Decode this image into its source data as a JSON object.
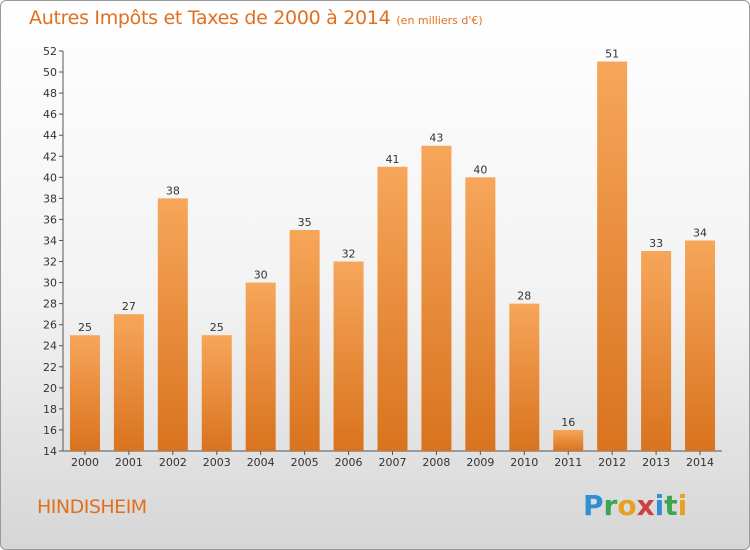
{
  "header": {
    "title": "Autres Impôts et Taxes de 2000 à 2014",
    "unit": "(en milliers d'€)"
  },
  "footer": {
    "town": "HINDISHEIM",
    "logo_letters": [
      "P",
      "r",
      "o",
      "x",
      "i",
      "t",
      "i"
    ]
  },
  "colors": {
    "accent": "#e07020",
    "bar_top": "#f6a65a",
    "bar_bottom": "#d9731e"
  },
  "chart_data": {
    "type": "bar",
    "title": "Autres Impôts et Taxes de 2000 à 2014",
    "subtitle": "(en milliers d'€)",
    "xlabel": "",
    "ylabel": "",
    "categories": [
      "2000",
      "2001",
      "2002",
      "2003",
      "2004",
      "2005",
      "2006",
      "2007",
      "2008",
      "2009",
      "2010",
      "2011",
      "2012",
      "2013",
      "2014"
    ],
    "values": [
      25,
      27,
      38,
      25,
      30,
      35,
      32,
      41,
      43,
      40,
      28,
      16,
      51,
      33,
      34
    ],
    "ylim": [
      14,
      52
    ],
    "yticks": [
      14,
      16,
      18,
      20,
      22,
      24,
      26,
      28,
      30,
      32,
      34,
      36,
      38,
      40,
      42,
      44,
      46,
      48,
      50,
      52
    ],
    "grid": false,
    "legend": "none"
  }
}
